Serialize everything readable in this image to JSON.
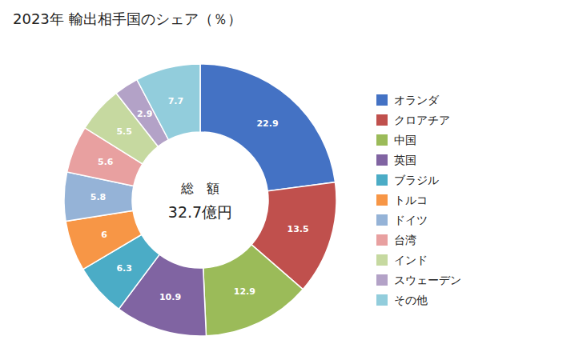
{
  "chart_data": {
    "type": "donut",
    "title": "2023年 輸出相手国のシェア（％）",
    "annotations": [
      "総　額",
      "32.7億円"
    ],
    "categories": [
      "オランダ",
      "クロアチア",
      "中国",
      "英国",
      "ブラジル",
      "トルコ",
      "ドイツ",
      "台湾",
      "インド",
      "スウェーデン",
      "その他"
    ],
    "values": [
      22.9,
      13.5,
      12.9,
      10.9,
      6.3,
      6.0,
      5.8,
      5.6,
      5.5,
      2.9,
      7.7
    ],
    "colors": [
      "#4472C4",
      "#C0504D",
      "#9BBB59",
      "#8064A2",
      "#4BACC6",
      "#F79646",
      "#95B3D7",
      "#E8A0A0",
      "#C6D9A0",
      "#B3A2C7",
      "#92CDDC"
    ],
    "data_labels": true,
    "legend": "right"
  }
}
